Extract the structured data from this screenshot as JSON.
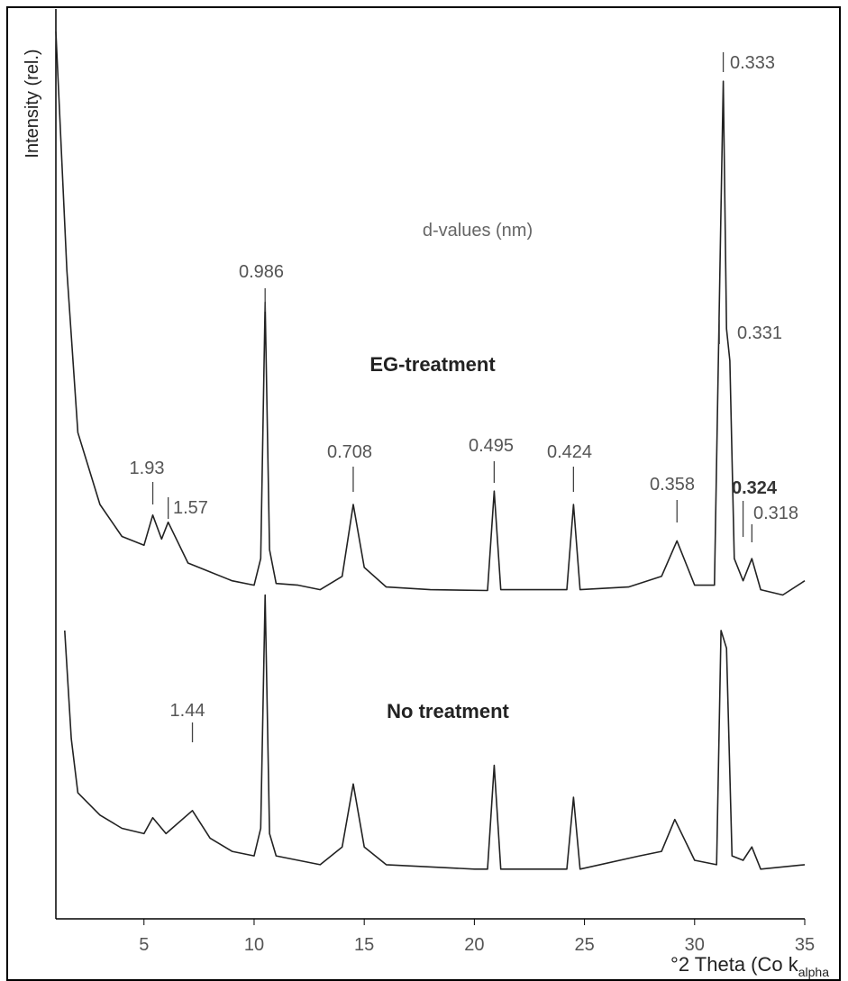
{
  "chart_data": {
    "type": "line",
    "ylabel": "Intensity (rel.)",
    "xlabel": "°2 Theta (Co k",
    "xlabel_subscript": "alpha",
    "xlim": [
      1,
      35
    ],
    "xticks": [
      5,
      10,
      15,
      20,
      25,
      30,
      35
    ],
    "ylim": [
      0,
      100
    ],
    "annotations": [
      "d-values (nm)",
      "EG-treatment",
      "No treatment"
    ],
    "peak_labels": [
      {
        "text": "0.333",
        "x": 31.3
      },
      {
        "text": "0.331",
        "x": 31.45
      },
      {
        "text": "0.324",
        "x": 32.2
      },
      {
        "text": "0.318",
        "x": 32.6
      },
      {
        "text": "0.986",
        "x": 10.5
      },
      {
        "text": "1.93",
        "x": 5.4
      },
      {
        "text": "1.57",
        "x": 6.1
      },
      {
        "text": "0.708",
        "x": 14.5
      },
      {
        "text": "0.495",
        "x": 20.9
      },
      {
        "text": "0.424",
        "x": 24.5
      },
      {
        "text": "0.358",
        "x": 29.2
      },
      {
        "text": "1.44",
        "x": 7.2
      }
    ],
    "series": [
      {
        "name": "EG-treatment",
        "color": "#222222",
        "x": [
          1.0,
          1.5,
          2,
          3,
          4,
          5,
          5.4,
          5.8,
          6.1,
          7,
          8,
          9,
          10,
          10.3,
          10.5,
          10.7,
          11,
          12,
          13,
          14,
          14.5,
          15,
          16,
          18,
          20.6,
          20.9,
          21.2,
          23,
          24.2,
          24.5,
          24.8,
          27,
          28.5,
          29.2,
          30,
          30.9,
          31.2,
          31.3,
          31.45,
          31.6,
          31.8,
          32.2,
          32.6,
          33,
          34,
          35
        ],
        "values": [
          100,
          73.1,
          54.8,
          46.7,
          43.1,
          42.1,
          45.5,
          42.8,
          44.7,
          40.1,
          39.1,
          38.1,
          37.6,
          40.6,
          69.5,
          41.6,
          37.8,
          37.6,
          37.1,
          38.6,
          46.7,
          39.6,
          37.4,
          37.1,
          37.0,
          48.2,
          37.1,
          37.1,
          37.1,
          46.7,
          37.1,
          37.4,
          38.6,
          42.6,
          37.6,
          37.6,
          80.2,
          94.4,
          66.5,
          62.9,
          40.6,
          38.1,
          40.6,
          37.1,
          36.5,
          38.1
        ]
      },
      {
        "name": "No treatment",
        "color": "#222222",
        "x": [
          1.4,
          1.7,
          2,
          3,
          4,
          5,
          5.4,
          6,
          7.2,
          8,
          9,
          10,
          10.3,
          10.5,
          10.7,
          11,
          13,
          14,
          14.5,
          15,
          16,
          20,
          20.6,
          20.9,
          21.2,
          24.2,
          24.5,
          24.8,
          27.5,
          28.5,
          29.1,
          30,
          31,
          31.2,
          31.45,
          31.7,
          32.2,
          32.6,
          33,
          35
        ],
        "values": [
          32.5,
          20.3,
          14.2,
          11.7,
          10.2,
          9.6,
          11.4,
          9.6,
          12.2,
          9.1,
          7.6,
          7.1,
          10.2,
          36.5,
          9.6,
          7.1,
          6.1,
          8.1,
          15.2,
          8.1,
          6.1,
          5.6,
          5.6,
          17.3,
          5.6,
          5.6,
          13.7,
          5.6,
          7.1,
          7.6,
          11.2,
          6.6,
          6.1,
          32.5,
          30.5,
          7.1,
          6.6,
          8.1,
          5.6,
          6.1
        ]
      }
    ]
  }
}
